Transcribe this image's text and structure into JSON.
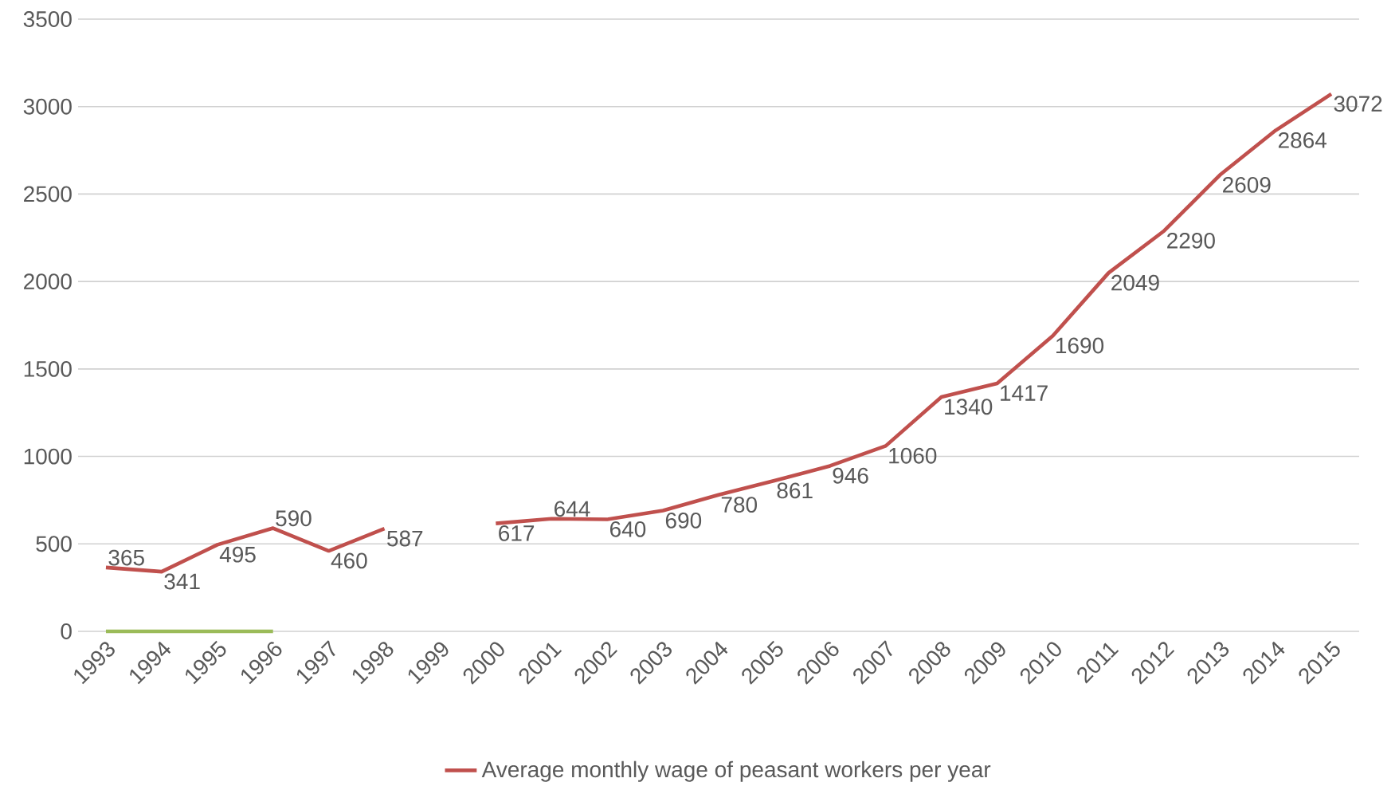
{
  "chart_data": {
    "type": "line",
    "categories": [
      "1993",
      "1994",
      "1995",
      "1996",
      "1997",
      "1998",
      "1999",
      "2000",
      "2001",
      "2002",
      "2003",
      "2004",
      "2005",
      "2006",
      "2007",
      "2008",
      "2009",
      "2010",
      "2011",
      "2012",
      "2013",
      "2014",
      "2015"
    ],
    "series": [
      {
        "name": "Average monthly wage of peasant workers per year",
        "color": "#c0504d",
        "values": [
          365,
          341,
          495,
          590,
          460,
          587,
          null,
          617,
          644,
          640,
          690,
          780,
          861,
          946,
          1060,
          1340,
          1417,
          1690,
          2049,
          2290,
          2609,
          2864,
          3072
        ],
        "value_labels": [
          "365",
          "341",
          "495",
          "590",
          "460",
          "587",
          null,
          "617",
          "644",
          "640",
          "690",
          "780",
          "861",
          "946",
          "1060",
          "1340",
          "1417",
          "1690",
          "2049",
          "2290",
          "2609",
          "2864",
          "3072"
        ]
      },
      {
        "color": "#9bbb59",
        "values": [
          0,
          0,
          0,
          0,
          null,
          null,
          null,
          null,
          null,
          null,
          null,
          null,
          null,
          null,
          null,
          null,
          null,
          null,
          null,
          null,
          null,
          null,
          null
        ]
      }
    ],
    "ylim": [
      0,
      3500
    ],
    "yticks": [
      0,
      500,
      1000,
      1500,
      2000,
      2500,
      3000,
      3500
    ],
    "grid": "y",
    "legend": "bottom"
  }
}
